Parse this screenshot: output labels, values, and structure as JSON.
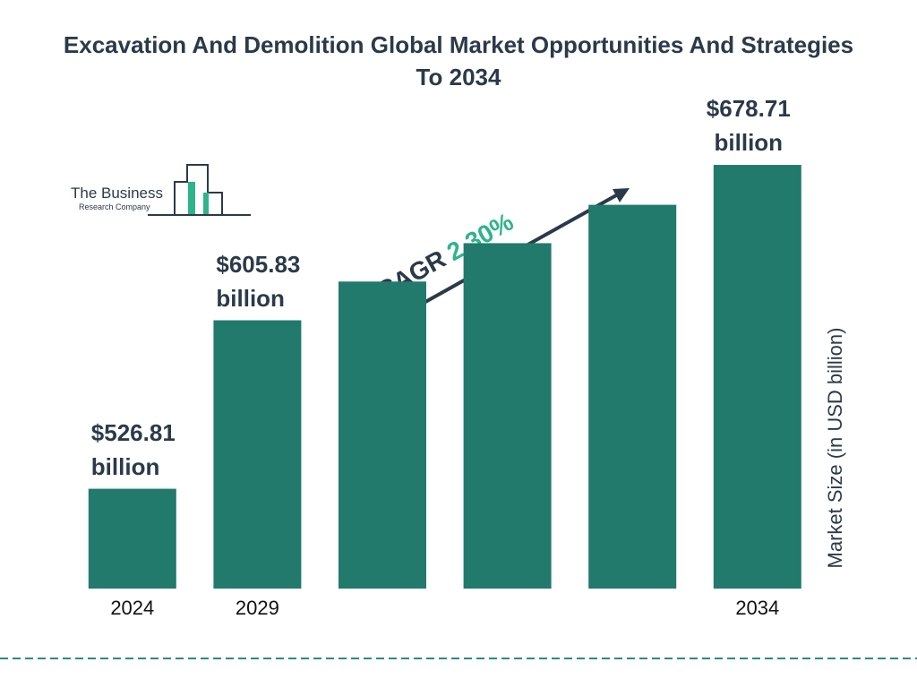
{
  "chart_data": {
    "type": "bar",
    "title": "Excavation And Demolition Global Market Opportunities And Strategies To 2034",
    "y_label": "Market Size (in USD billion)",
    "brand": {
      "name": "The Business",
      "tagline": "Research Company"
    },
    "annotation": {
      "label": "CAGR",
      "value": "2.30%"
    },
    "categories": [
      "2024",
      "2029",
      null,
      null,
      null,
      "2034"
    ],
    "values": [
      526.81,
      605.83,
      624,
      642,
      660,
      678.71
    ],
    "value_labels": [
      "$526.81 billion",
      "$605.83 billion",
      null,
      null,
      null,
      "$678.71 billion"
    ],
    "color": "#217a6b",
    "ylim": [
      480,
      680
    ]
  }
}
